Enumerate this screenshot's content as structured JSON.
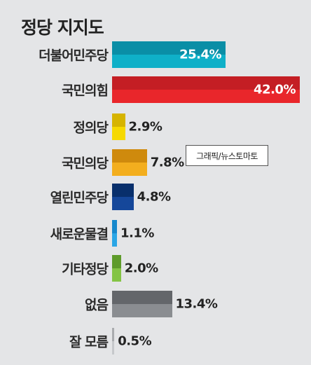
{
  "chart_data": {
    "type": "bar",
    "orientation": "horizontal",
    "title": "정당 지지도",
    "categories": [
      "더불어민주당",
      "국민의힘",
      "정의당",
      "국민의당",
      "열린민주당",
      "새로운물결",
      "기타정당",
      "없음",
      "잘 모름"
    ],
    "values": [
      25.4,
      42.0,
      2.9,
      7.8,
      4.8,
      1.1,
      2.0,
      13.4,
      0.5
    ],
    "value_labels": [
      "25.4%",
      "42.0%",
      "2.9%",
      "7.8%",
      "4.8%",
      "1.1%",
      "2.0%",
      "13.4%",
      "0.5%"
    ],
    "colors": [
      {
        "top": "#0a8ea6",
        "bottom": "#0fb0c8"
      },
      {
        "top": "#c41e24",
        "bottom": "#e9262b"
      },
      {
        "top": "#d6b400",
        "bottom": "#f6d900"
      },
      {
        "top": "#cf8a0d",
        "bottom": "#f3ae1e"
      },
      {
        "top": "#082f6c",
        "bottom": "#15479a"
      },
      {
        "top": "#1688cc",
        "bottom": "#2aa6e6"
      },
      {
        "top": "#5e9b2a",
        "bottom": "#84c444"
      },
      {
        "top": "#63666a",
        "bottom": "#8a8d91"
      },
      {
        "top": "#a9abae",
        "bottom": "#c6c8cb"
      }
    ],
    "xlim": [
      0,
      42.0
    ],
    "xlabel": "",
    "ylabel": "",
    "grid": false,
    "legend": "none"
  },
  "credit": "그래픽/뉴스토마토"
}
